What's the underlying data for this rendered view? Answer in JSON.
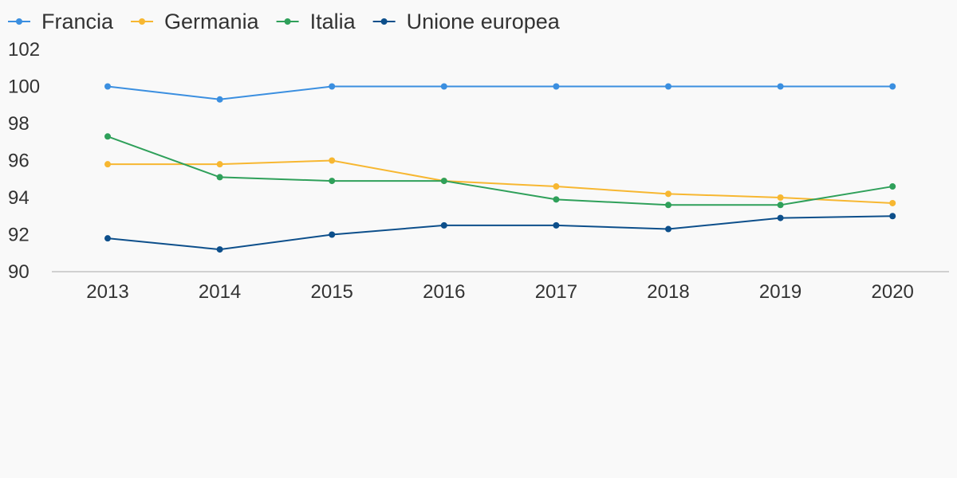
{
  "chart_data": {
    "type": "line",
    "x": [
      "2013",
      "2014",
      "2015",
      "2016",
      "2017",
      "2018",
      "2019",
      "2020"
    ],
    "ylim": [
      90,
      102
    ],
    "yticks": [
      "90",
      "92",
      "94",
      "96",
      "98",
      "100",
      "102"
    ],
    "grid": false,
    "legend_position": "top-left",
    "series": [
      {
        "name": "Francia",
        "color": "#3b8fe0",
        "values": [
          100,
          99.3,
          100,
          100,
          100,
          100,
          100,
          100
        ]
      },
      {
        "name": "Germania",
        "color": "#f7b731",
        "values": [
          95.8,
          95.8,
          96.0,
          94.9,
          94.6,
          94.2,
          94.0,
          93.7
        ]
      },
      {
        "name": "Italia",
        "color": "#2fa05a",
        "values": [
          97.3,
          95.1,
          94.9,
          94.9,
          93.9,
          93.6,
          93.6,
          94.6
        ]
      },
      {
        "name": "Unione europea",
        "color": "#0d4f8b",
        "values": [
          91.8,
          91.2,
          92.0,
          92.5,
          92.5,
          92.3,
          92.9,
          93.0
        ]
      }
    ]
  }
}
